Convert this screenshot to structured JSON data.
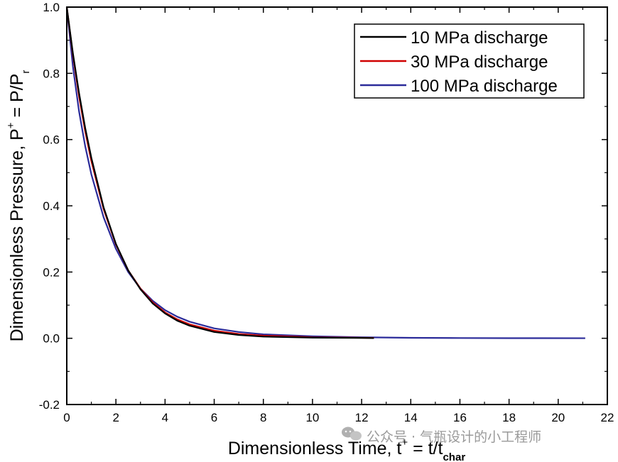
{
  "chart_data": {
    "type": "line",
    "title": "",
    "xlabel": {
      "main": "Dimensionless Time, t",
      "sup": "+",
      "mid": " = t/t",
      "sub": "char"
    },
    "ylabel": {
      "main": "Dimensionless Pressure, P",
      "sup": "+",
      "mid": " = P/P",
      "sub": "r"
    },
    "xlim": [
      0,
      22
    ],
    "ylim": [
      -0.2,
      1.0
    ],
    "xticks": [
      "0",
      "2",
      "4",
      "6",
      "8",
      "10",
      "12",
      "14",
      "16",
      "18",
      "20",
      "22"
    ],
    "yticks": [
      "-0.2",
      "0.0",
      "0.2",
      "0.4",
      "0.6",
      "0.8",
      "1.0"
    ],
    "grid": false,
    "legend_position": "top-right",
    "series": [
      {
        "name": "10 MPa discharge",
        "color": "#000000",
        "x": [
          0,
          0.25,
          0.5,
          0.75,
          1.0,
          1.5,
          2.0,
          2.5,
          3.0,
          3.5,
          4.0,
          4.5,
          5.0,
          6.0,
          7.0,
          8.0,
          10.0,
          12.0,
          12.5
        ],
        "y": [
          1.0,
          0.86,
          0.74,
          0.635,
          0.545,
          0.395,
          0.285,
          0.205,
          0.148,
          0.105,
          0.075,
          0.053,
          0.038,
          0.019,
          0.01,
          0.005,
          0.002,
          0.001,
          0.0005
        ]
      },
      {
        "name": "30 MPa discharge",
        "color": "#d00000",
        "x": [
          0,
          0.25,
          0.5,
          0.75,
          1.0,
          1.5,
          2.0,
          2.5,
          3.0,
          3.5,
          4.0,
          4.5,
          5.0,
          6.0,
          7.0,
          8.0,
          10.0,
          12.0,
          12.5
        ],
        "y": [
          1.0,
          0.855,
          0.73,
          0.625,
          0.535,
          0.39,
          0.283,
          0.205,
          0.15,
          0.108,
          0.078,
          0.057,
          0.042,
          0.023,
          0.013,
          0.008,
          0.003,
          0.0015,
          0.001
        ]
      },
      {
        "name": "100 MPa discharge",
        "color": "#2b2b9a",
        "x": [
          0,
          0.25,
          0.5,
          0.75,
          1.0,
          1.5,
          2.0,
          2.5,
          3.0,
          3.5,
          4.0,
          4.5,
          5.0,
          6.0,
          7.0,
          8.0,
          10.0,
          12.0,
          14.0,
          16.0,
          18.0,
          21.1
        ],
        "y": [
          1.0,
          0.82,
          0.685,
          0.58,
          0.495,
          0.365,
          0.27,
          0.2,
          0.15,
          0.113,
          0.085,
          0.065,
          0.05,
          0.03,
          0.019,
          0.012,
          0.006,
          0.003,
          0.0015,
          0.0008,
          0.0004,
          0.0002
        ]
      }
    ]
  },
  "watermark": {
    "text": "公众号 · 气瓶设计的小工程师",
    "icon": "wechat-icon"
  }
}
